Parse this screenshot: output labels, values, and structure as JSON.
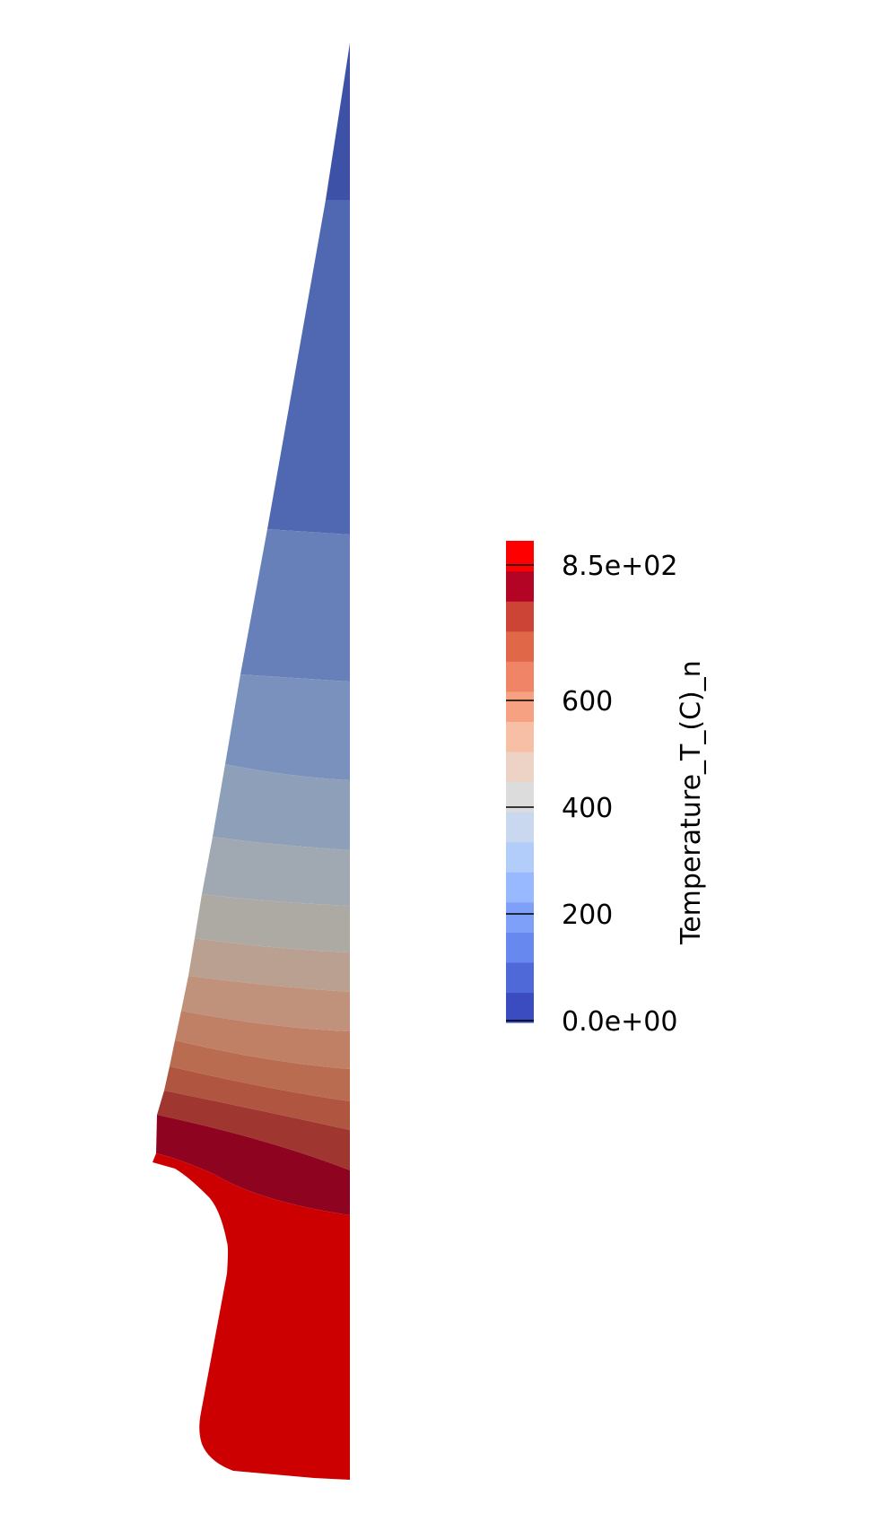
{
  "legend": {
    "title": "Temperature_T_(C)_n",
    "range": [
      0,
      850
    ],
    "ticks": [
      {
        "value": 850,
        "label": "8.5e+02"
      },
      {
        "value": 600,
        "label": "600"
      },
      {
        "value": 400,
        "label": "400"
      },
      {
        "value": 200,
        "label": "200"
      },
      {
        "value": 0,
        "label": "0.0e+00"
      }
    ],
    "color_bands_bottom_to_top": [
      "#3b4cc0",
      "#4f69d8",
      "#6788ee",
      "#7ea0f9",
      "#98b9ff",
      "#b3cdfb",
      "#cad8ef",
      "#dddcdc",
      "#ecd3c5",
      "#f6bfa6",
      "#f5a182",
      "#ef8566",
      "#e06849",
      "#cc4436",
      "#b40426",
      "#ff0000"
    ]
  },
  "model": {
    "band_colors_top_to_bottom": [
      "#3d52a6",
      "#5068b1",
      "#6780ba",
      "#7a91be",
      "#8e9fb9",
      "#a0a9b1",
      "#ada9a3",
      "#b9a091",
      "#c0917b",
      "#c08066",
      "#ba6c51",
      "#b05640",
      "#a03630",
      "#8e0420",
      "#cc0000"
    ]
  }
}
